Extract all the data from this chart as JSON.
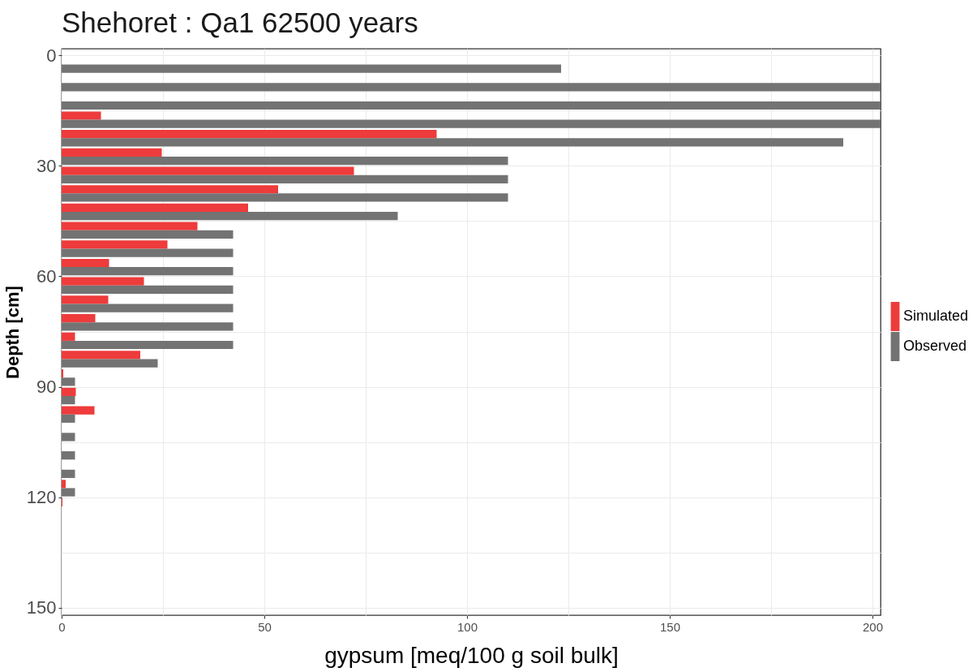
{
  "chart_data": {
    "type": "bar",
    "orientation": "horizontal",
    "title": "Shehoret : Qa1 62500 years",
    "xlabel": "gypsum [meq/100 g soil bulk]",
    "ylabel": "Depth [cm]",
    "x": [
      2.5,
      7.5,
      12.5,
      17.5,
      22.5,
      27.5,
      32.5,
      37.5,
      42.5,
      47.5,
      52.5,
      57.5,
      62.5,
      67.5,
      72.5,
      77.5,
      82.5,
      87.5,
      92.5,
      97.5,
      102.5,
      107.5,
      112.5,
      117.5,
      122.5
    ],
    "series": [
      {
        "name": "Simulated",
        "color": "#ee3b3b",
        "values": [
          null,
          null,
          null,
          9.7,
          92.5,
          24.7,
          72.1,
          53.4,
          46.0,
          33.5,
          26.1,
          11.7,
          20.3,
          11.5,
          8.3,
          3.3,
          19.4,
          0.4,
          3.5,
          8.1,
          null,
          null,
          null,
          1.0,
          0.2
        ]
      },
      {
        "name": "Observed",
        "color": "#737373",
        "values": [
          123.2,
          202,
          202,
          202,
          192.8,
          110.1,
          110.1,
          110.1,
          82.9,
          42.3,
          42.3,
          42.3,
          42.3,
          42.3,
          42.3,
          42.3,
          23.7,
          3.3,
          3.3,
          3.3,
          3.3,
          3.3,
          3.3,
          3.3,
          null
        ]
      }
    ],
    "xlim": [
      0,
      202
    ],
    "xticks": [
      0,
      {
        "value": 25,
        "label": null
      },
      50,
      {
        "value": 75,
        "label": null
      },
      100,
      {
        "value": 125,
        "label": null
      },
      150,
      {
        "value": 175,
        "label": null
      },
      200
    ],
    "ylim": [
      152,
      -1.8
    ],
    "yticks": [
      0,
      {
        "value": 15,
        "label": null
      },
      30,
      {
        "value": 45,
        "label": null
      },
      60,
      {
        "value": 75,
        "label": null
      },
      90,
      {
        "value": 105,
        "label": null
      },
      120,
      {
        "value": 135,
        "label": null
      },
      150
    ],
    "grid": true,
    "legend": "right"
  }
}
